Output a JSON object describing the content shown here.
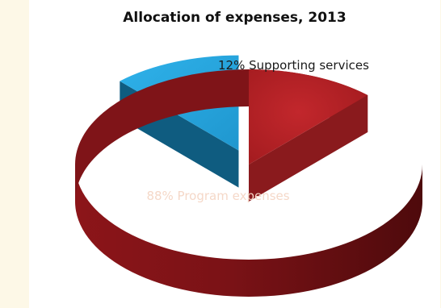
{
  "chart_data": {
    "type": "pie",
    "title": "Allocation of expenses, 2013",
    "slices": [
      {
        "label": "Program expenses",
        "value": 88,
        "color": "#b31f24",
        "label_color": "#f5d8c8"
      },
      {
        "label": "Supporting services",
        "value": 12,
        "color": "#29a9e1",
        "label_color": "#1a1a1a"
      }
    ],
    "exploded": "Supporting services",
    "legend": "none",
    "style": "3d"
  }
}
